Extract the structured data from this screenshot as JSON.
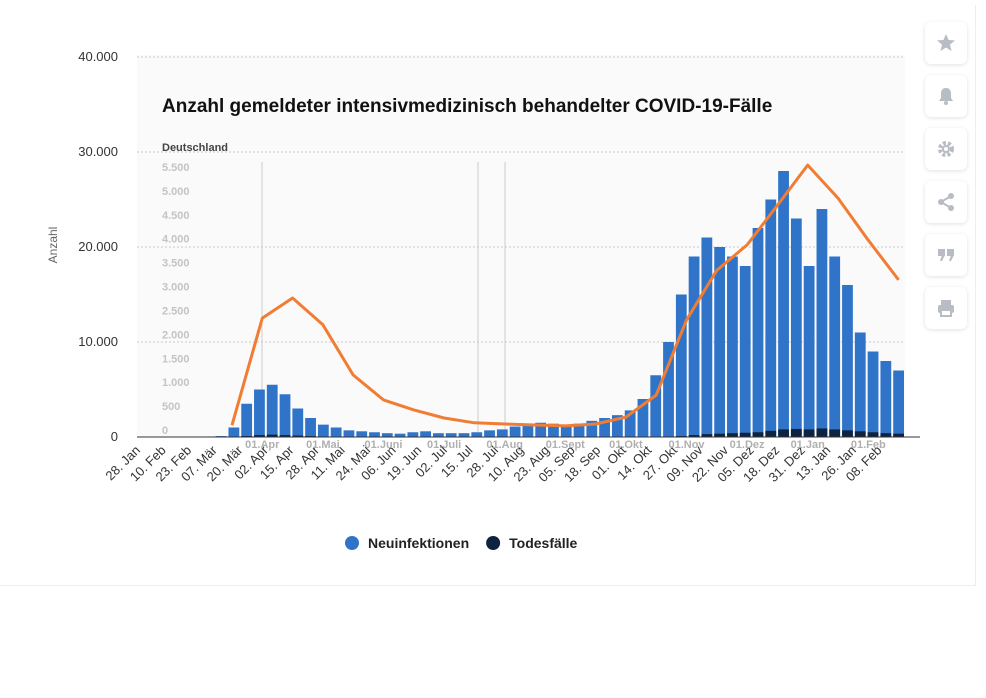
{
  "chart_data": [
    {
      "type": "bar",
      "y_label": "Anzahl",
      "categories": [
        "28. Jan",
        null,
        "10. Feb",
        null,
        "23. Feb",
        null,
        "07. Mär",
        null,
        "20. Mär",
        null,
        "02. Apr",
        null,
        "15. Apr",
        null,
        "28. Apr",
        null,
        "11. Mai",
        null,
        "24. Mai",
        null,
        "06. Jun",
        null,
        "19. Jun",
        null,
        "02. Jul",
        null,
        "15. Jul",
        null,
        "28. Jul",
        null,
        "10. Aug",
        null,
        "23. Aug",
        null,
        "05. Sep",
        null,
        "18. Sep",
        null,
        "01. Okt",
        null,
        "14. Okt",
        null,
        "27. Okt",
        null,
        "09. Nov",
        null,
        "22. Nov",
        null,
        "05. Dez",
        null,
        "18. Dez",
        null,
        "31. Dez",
        null,
        "13. Jan",
        null,
        "26. Jan",
        null,
        "08. Feb",
        null
      ],
      "series": [
        {
          "name": "Neuinfektionen",
          "color": "#2f74c8",
          "values": [
            0,
            0,
            0,
            0,
            0,
            0,
            100,
            1000,
            3500,
            5000,
            5500,
            4500,
            3000,
            2000,
            1300,
            1000,
            700,
            600,
            500,
            400,
            350,
            500,
            600,
            400,
            400,
            400,
            500,
            700,
            800,
            1100,
            1300,
            1500,
            1400,
            1300,
            1400,
            1700,
            2000,
            2300,
            2800,
            4000,
            6500,
            10000,
            15000,
            19000,
            21000,
            20000,
            19000,
            18000,
            22000,
            25000,
            28000,
            23000,
            18000,
            24000,
            19000,
            16000,
            11000,
            9000,
            8000,
            7000
          ]
        },
        {
          "name": "Todesfälle",
          "color": "#0e2341",
          "values": [
            0,
            0,
            0,
            0,
            0,
            0,
            0,
            20,
            100,
            200,
            250,
            200,
            150,
            100,
            60,
            40,
            30,
            20,
            15,
            10,
            10,
            10,
            10,
            5,
            5,
            5,
            5,
            5,
            5,
            5,
            5,
            5,
            5,
            5,
            10,
            10,
            15,
            15,
            20,
            30,
            40,
            60,
            100,
            200,
            300,
            350,
            400,
            450,
            500,
            650,
            800,
            850,
            800,
            900,
            800,
            700,
            600,
            500,
            400,
            350
          ]
        }
      ],
      "ylim": [
        0,
        40000
      ],
      "yticks": [
        0,
        {
          "value": 10000,
          "label": "10.000"
        },
        {
          "value": 20000,
          "label": "20.000"
        },
        {
          "value": 30000,
          "label": "30.000"
        },
        {
          "value": 40000,
          "label": "40.000"
        }
      ],
      "grid": true
    },
    {
      "type": "line",
      "title": "Anzahl gemeldeter intensivmedizinisch behandelter COVID-19-Fälle",
      "subtitle": "Deutschland",
      "categories": [
        null,
        "01.Apr",
        null,
        "01.Mai",
        null,
        "01.Juni",
        null,
        "01.Juli",
        null,
        "01.Aug",
        null,
        "01.Sept",
        null,
        "01.Okt",
        null,
        "01.Nov",
        null,
        "01.Dez",
        null,
        "01.Jan",
        null,
        "01.Feb",
        null
      ],
      "color": "#f07d33",
      "values": [
        100,
        2340,
        2760,
        2200,
        1150,
        630,
        420,
        250,
        150,
        125,
        105,
        85,
        125,
        270,
        730,
        2300,
        3340,
        3870,
        4700,
        5540,
        4850,
        3970,
        3140
      ],
      "ylim": [
        0,
        5500
      ],
      "yticks": [
        0,
        500,
        {
          "value": 1000,
          "label": "1.000"
        },
        {
          "value": 1500,
          "label": "1.500"
        },
        {
          "value": 2000,
          "label": "2.000"
        },
        {
          "value": 2500,
          "label": "2.500"
        },
        {
          "value": 3000,
          "label": "3.000"
        },
        {
          "value": 3500,
          "label": "3.500"
        },
        {
          "value": 4000,
          "label": "4.000"
        },
        {
          "value": 4500,
          "label": "4.500"
        },
        {
          "value": 5000,
          "label": "5.000"
        },
        {
          "value": 5500,
          "label": "5.500"
        }
      ]
    }
  ]
}
